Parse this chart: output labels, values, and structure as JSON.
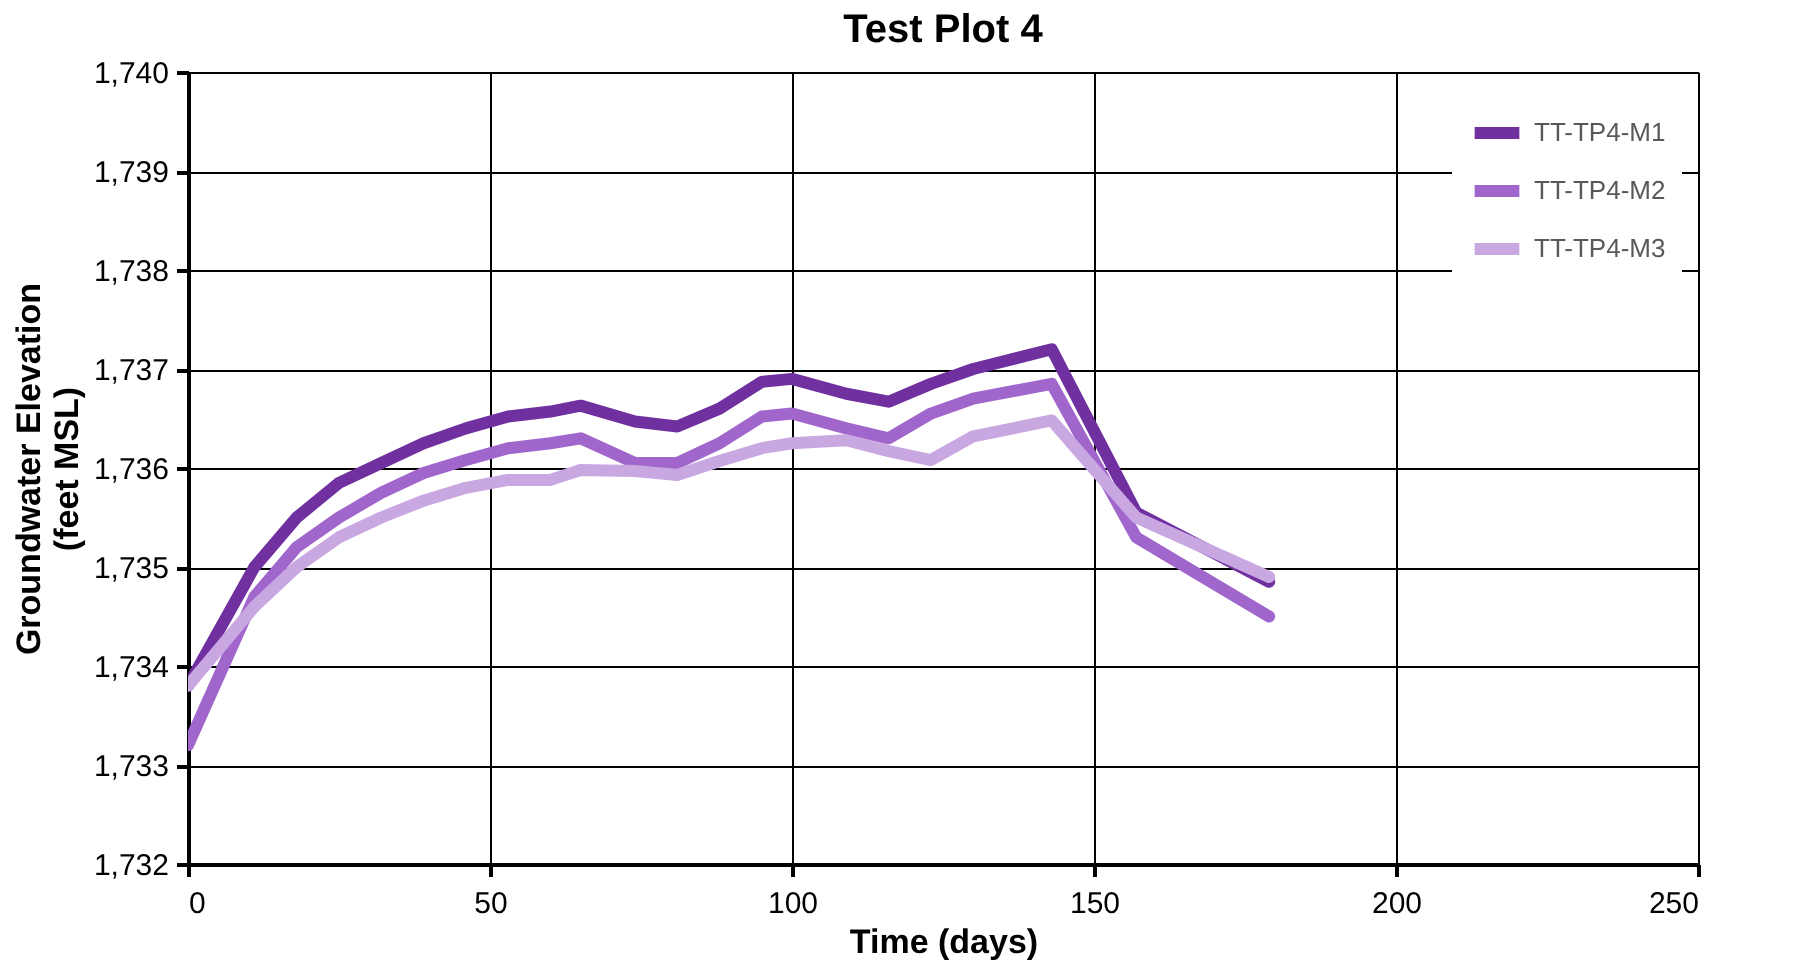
{
  "chart_data": {
    "type": "line",
    "title": "Test Plot 4",
    "xlabel": "Time (days)",
    "ylabel": "Groundwater Elevation (feet MSL)",
    "xlim": [
      0,
      250
    ],
    "xticks": [
      0,
      50,
      100,
      150,
      200,
      250
    ],
    "ylim": [
      1732,
      1740
    ],
    "yticks": [
      {
        "value": 1732,
        "label": "1,732"
      },
      {
        "value": 1733,
        "label": "1,733"
      },
      {
        "value": 1734,
        "label": "1,734"
      },
      {
        "value": 1735,
        "label": "1,735"
      },
      {
        "value": 1736,
        "label": "1,736"
      },
      {
        "value": 1737,
        "label": "1,737"
      },
      {
        "value": 1738,
        "label": "1,738"
      },
      {
        "value": 1739,
        "label": "1,739"
      },
      {
        "value": 1740,
        "label": "1,740"
      }
    ],
    "grid": true,
    "legend": "top right",
    "marker": "none",
    "line_style": "solid",
    "x": [
      0,
      11,
      18,
      25,
      32,
      39,
      46,
      53,
      60,
      65,
      74,
      81,
      88,
      95,
      100,
      109,
      116,
      123,
      130,
      143,
      157,
      179
    ],
    "series": [
      {
        "name": "TT-TP4-M1",
        "color": "#7030a0",
        "values": [
          1733.8,
          1735.0,
          1735.5,
          1735.85,
          1736.05,
          1736.25,
          1736.4,
          1736.52,
          1736.57,
          1736.63,
          1736.47,
          1736.42,
          1736.6,
          1736.87,
          1736.9,
          1736.75,
          1736.67,
          1736.85,
          1737.0,
          1737.2,
          1735.55,
          1734.85
        ]
      },
      {
        "name": "TT-TP4-M2",
        "color": "#a066cc",
        "values": [
          1733.2,
          1734.7,
          1735.2,
          1735.5,
          1735.75,
          1735.95,
          1736.08,
          1736.2,
          1736.25,
          1736.3,
          1736.05,
          1736.05,
          1736.25,
          1736.52,
          1736.55,
          1736.4,
          1736.3,
          1736.55,
          1736.7,
          1736.85,
          1735.3,
          1734.5
        ]
      },
      {
        "name": "TT-TP4-M3",
        "color": "#c9a8e2",
        "values": [
          1733.8,
          1734.6,
          1735.0,
          1735.3,
          1735.5,
          1735.67,
          1735.8,
          1735.88,
          1735.88,
          1735.98,
          1735.97,
          1735.93,
          1736.07,
          1736.2,
          1736.25,
          1736.28,
          1736.17,
          1736.08,
          1736.32,
          1736.48,
          1735.5,
          1734.9
        ]
      }
    ]
  }
}
